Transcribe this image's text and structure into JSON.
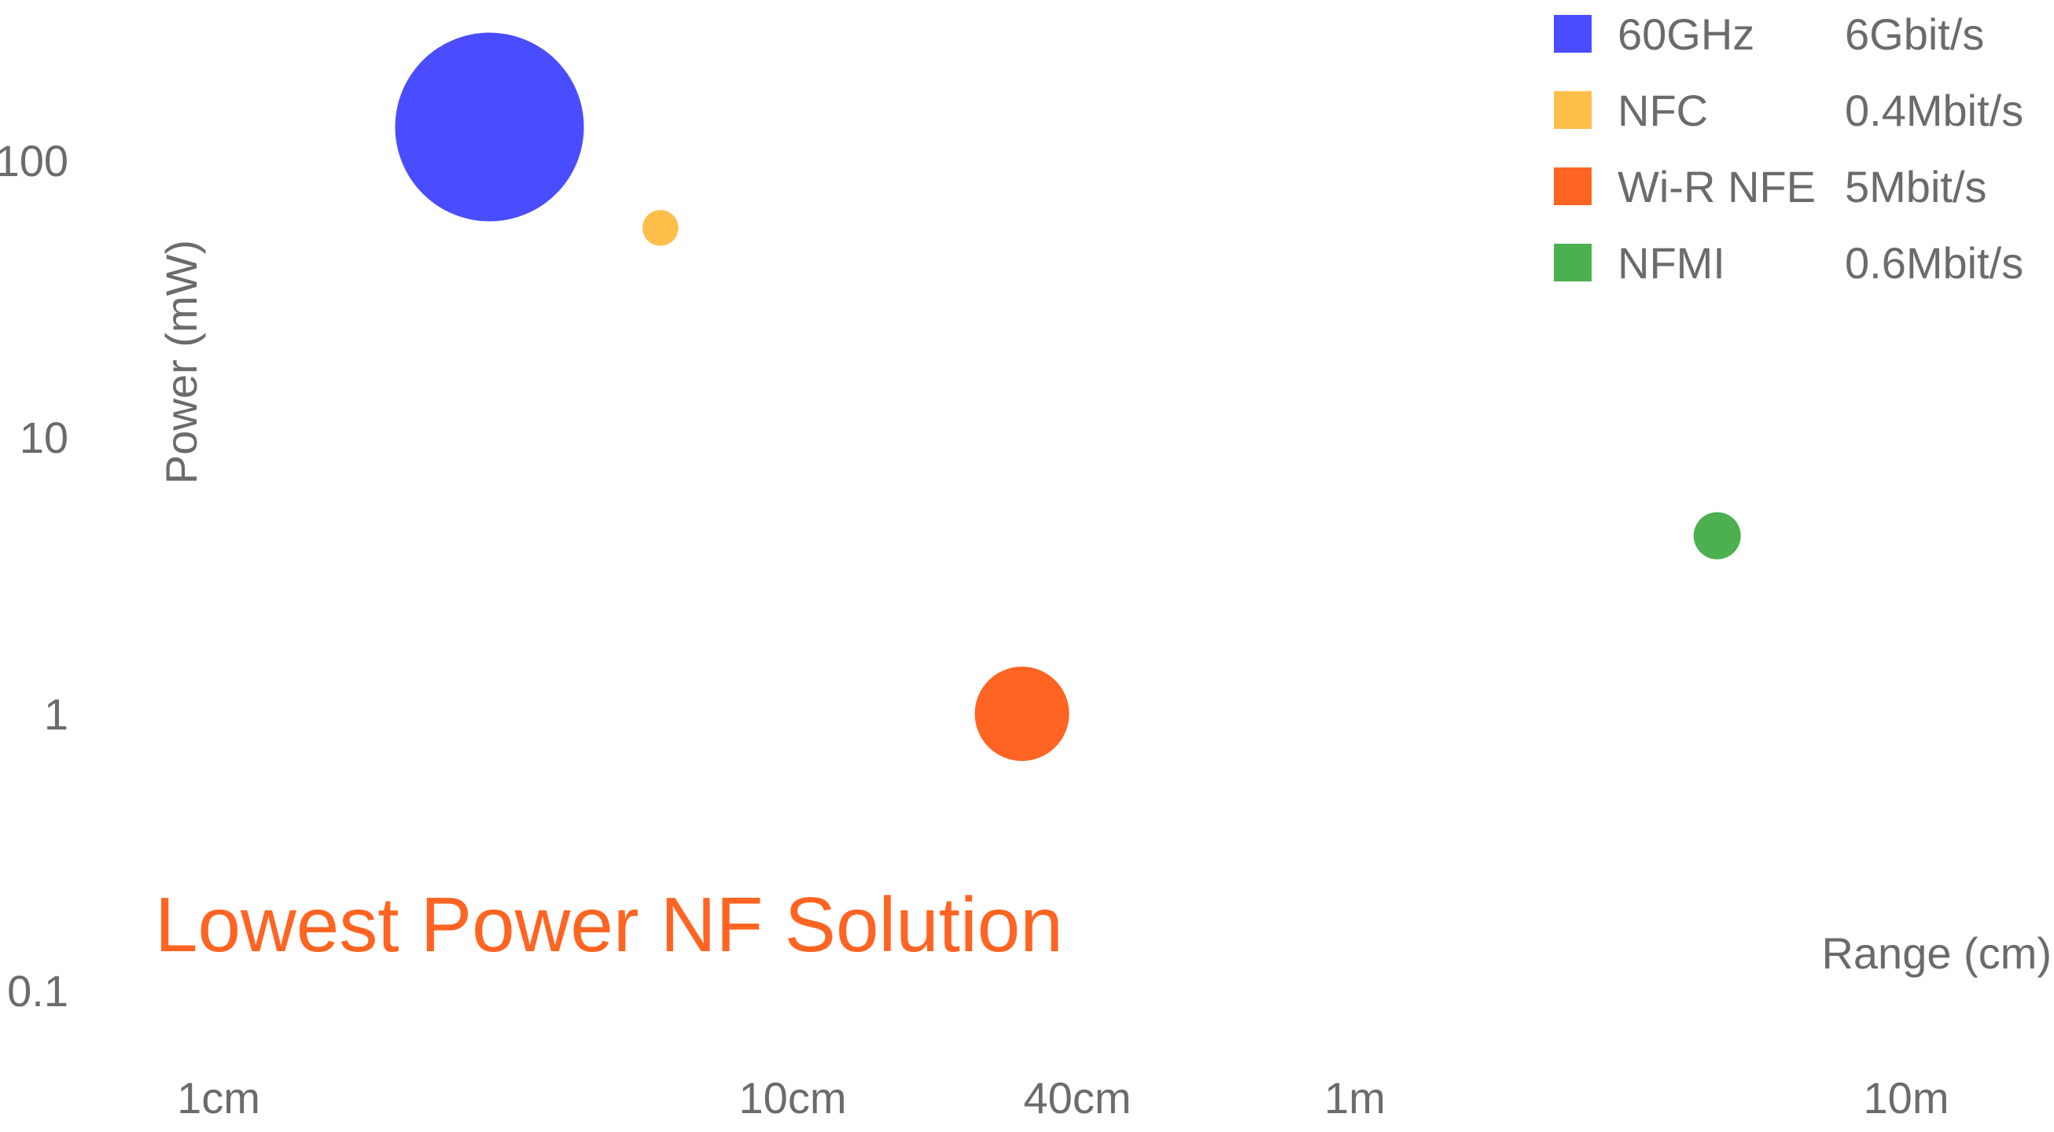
{
  "chart_data": {
    "type": "scatter",
    "title": "",
    "xlabel": "Range (cm)",
    "ylabel": "Power (mW)",
    "x_scale": "log",
    "y_scale": "log",
    "xlim": [
      0.65,
      2000
    ],
    "ylim": [
      0.05,
      300
    ],
    "grid": false,
    "legend_position": "top-right",
    "x_ticks": [
      {
        "value": 1,
        "label": "1cm"
      },
      {
        "value": 10,
        "label": "10cm"
      },
      {
        "value": 40,
        "label": "40cm"
      },
      {
        "value": 100,
        "label": "1m"
      },
      {
        "value": 1000,
        "label": "10m"
      }
    ],
    "y_ticks": [
      {
        "value": 100,
        "label": "100"
      },
      {
        "value": 10,
        "label": "10"
      },
      {
        "value": 1,
        "label": "1"
      },
      {
        "value": 0.1,
        "label": "0.1"
      }
    ],
    "series": [
      {
        "name": "60GHz",
        "rate": "6Gbit/s",
        "color": "#4A4DFF",
        "x": 3,
        "y": 132,
        "bubble_relative_size": 1.0
      },
      {
        "name": "NFC",
        "rate": "0.4Mbit/s",
        "color": "#FFBF4A",
        "x": 6,
        "y": 57,
        "bubble_relative_size": 0.19
      },
      {
        "name": "Wi-R NFE",
        "rate": "5Mbit/s",
        "color": "#FF6422",
        "x": 26,
        "y": 1,
        "bubble_relative_size": 0.5
      },
      {
        "name": "NFMI",
        "rate": "0.6Mbit/s",
        "color": "#4CAF50",
        "x": 436,
        "y": 4.4,
        "bubble_relative_size": 0.25
      }
    ],
    "annotation": {
      "text": "Lowest Power NF Solution",
      "color": "#FF6422"
    }
  }
}
